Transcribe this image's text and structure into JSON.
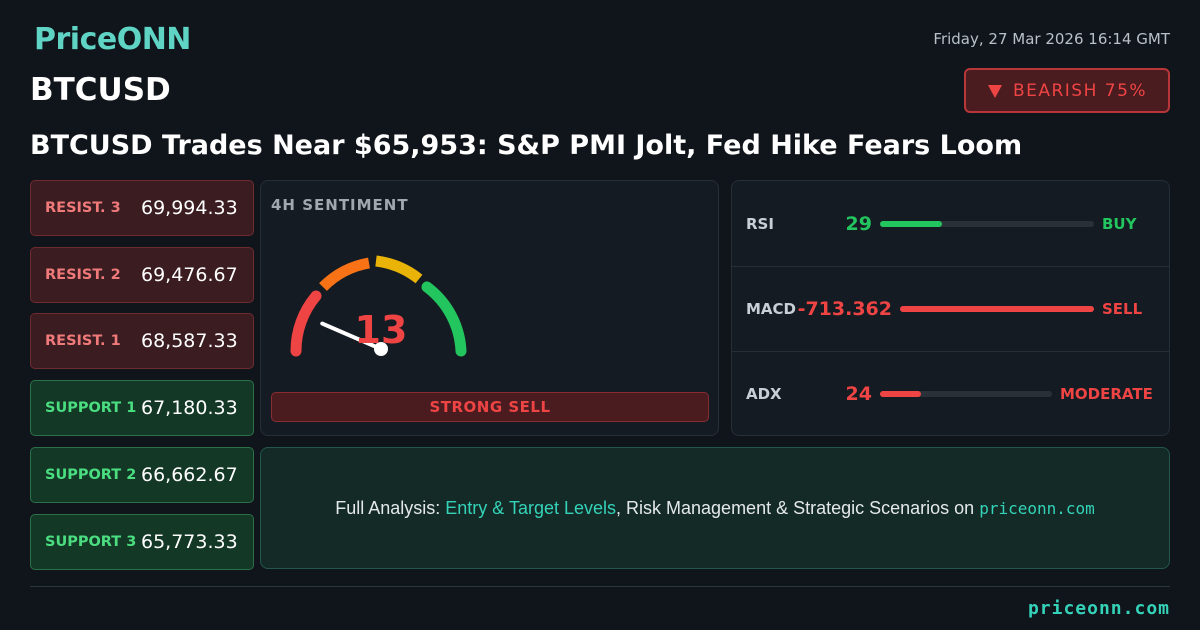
{
  "header": {
    "brand": "PriceONN",
    "datetime": "Friday, 27 Mar 2026 16:14 GMT",
    "symbol": "BTCUSD",
    "badge": "BEARISH 75%"
  },
  "headline": "BTCUSD Trades Near $65,953: S&P PMI Jolt, Fed Hike Fears Loom",
  "levels": [
    {
      "label": "RESIST. 3",
      "value": "69,994.33",
      "kind": "resistance"
    },
    {
      "label": "RESIST. 2",
      "value": "69,476.67",
      "kind": "resistance"
    },
    {
      "label": "RESIST. 1",
      "value": "68,587.33",
      "kind": "resistance"
    },
    {
      "label": "SUPPORT 1",
      "value": "67,180.33",
      "kind": "support"
    },
    {
      "label": "SUPPORT 2",
      "value": "66,662.67",
      "kind": "support"
    },
    {
      "label": "SUPPORT 3",
      "value": "65,773.33",
      "kind": "support"
    }
  ],
  "sentiment": {
    "title": "4H SENTIMENT",
    "value": 13,
    "label": "STRONG SELL"
  },
  "indicators": [
    {
      "name": "RSI",
      "value": 29,
      "signal": "BUY",
      "value_color": "#22c55e",
      "signal_color": "#22c55e"
    },
    {
      "name": "MACD",
      "value": -713.362,
      "signal": "SELL",
      "value_color": "#ef4444",
      "signal_color": "#ef4444"
    },
    {
      "name": "ADX",
      "value": 24,
      "signal": "MODERATE",
      "value_color": "#ef4444",
      "signal_color": "#ef4444"
    }
  ],
  "cta": {
    "prefix": "Full Analysis: ",
    "highlight": "Entry & Target Levels",
    "middle": ", Risk Management & Strategic Scenarios on ",
    "site": "priceonn.com"
  },
  "footer": "priceonn.com"
}
